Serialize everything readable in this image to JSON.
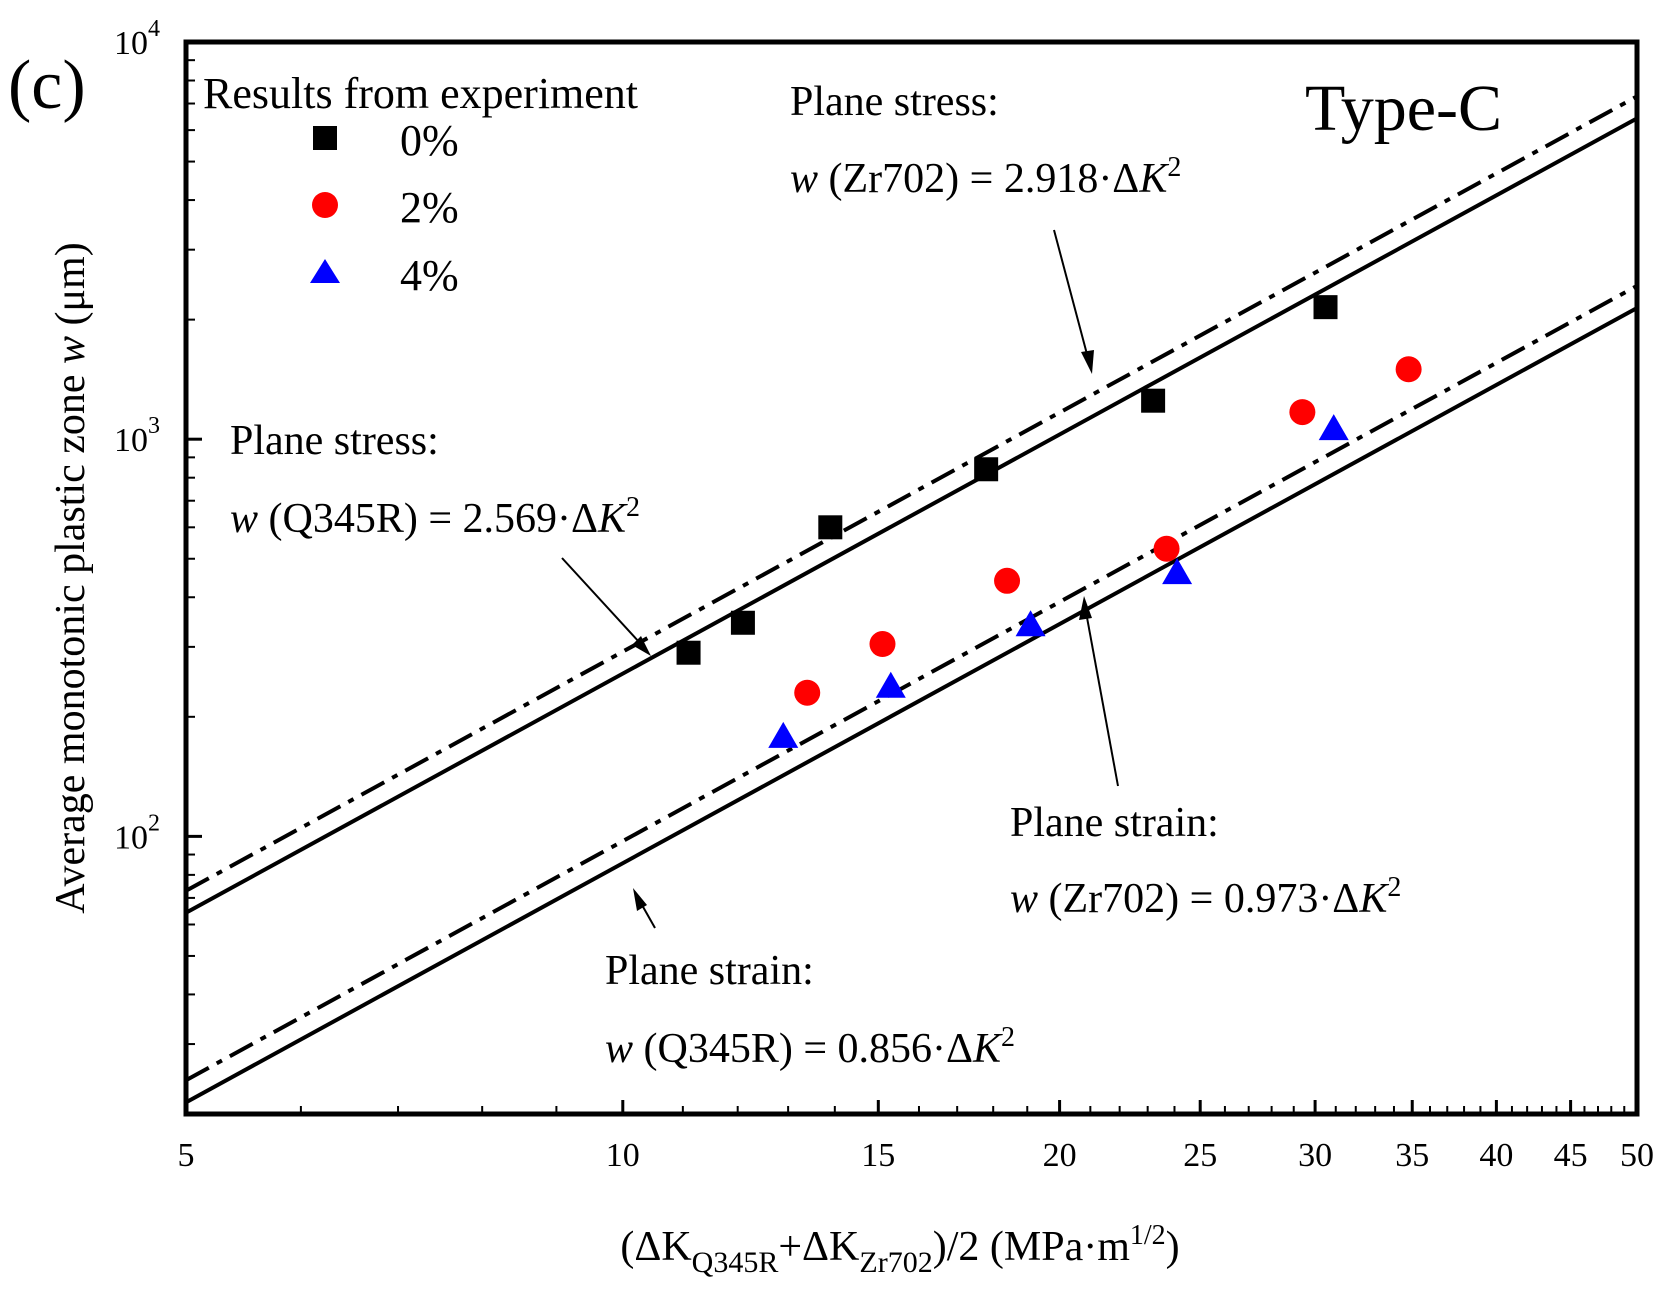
{
  "chart_data": {
    "type": "scatter",
    "panel_label": "(c)",
    "title": "Type-C",
    "xlabel_parts": [
      "(ΔK",
      "Q345R",
      "+ΔK",
      "Zr702",
      ")/2 (MPa·m",
      "1/2",
      ")"
    ],
    "ylabel_parts": [
      "Average monotonic plastic zone ",
      "w",
      " (μm)"
    ],
    "x_scale": "log",
    "y_scale": "log",
    "xlim": [
      5,
      50
    ],
    "ylim": [
      20,
      10000
    ],
    "x_ticks": [
      5,
      10,
      15,
      20,
      25,
      30,
      35,
      40,
      45,
      50
    ],
    "x_tick_labels": [
      "5",
      "10",
      "15",
      "20",
      "25",
      "30",
      "35",
      "40",
      "45",
      "50"
    ],
    "y_ticks": [
      {
        "base": "10",
        "exp": "2",
        "value": 100
      },
      {
        "base": "10",
        "exp": "3",
        "value": 1000
      },
      {
        "base": "10",
        "exp": "4",
        "value": 10000
      }
    ],
    "legend": {
      "title": "Results from experiment",
      "position": "top-left",
      "entries": [
        {
          "label": "0%",
          "marker": "square",
          "color": "#000000"
        },
        {
          "label": "2%",
          "marker": "circle",
          "color": "#ff0000"
        },
        {
          "label": "4%",
          "marker": "triangle",
          "color": "#0000ff"
        }
      ]
    },
    "series": [
      {
        "name": "0%",
        "marker": "square",
        "color": "#000000",
        "x": [
          11.1,
          12.1,
          13.9,
          17.8,
          23.2,
          30.5
        ],
        "y": [
          290,
          345,
          600,
          840,
          1250,
          2150
        ]
      },
      {
        "name": "2%",
        "marker": "circle",
        "color": "#ff0000",
        "x": [
          13.4,
          15.1,
          18.4,
          23.7,
          29.4,
          34.8
        ],
        "y": [
          230,
          305,
          440,
          530,
          1170,
          1500
        ]
      },
      {
        "name": "4%",
        "marker": "triangle",
        "color": "#0000ff",
        "x": [
          12.9,
          15.3,
          19.1,
          24.1,
          30.9
        ],
        "y": [
          178,
          238,
          340,
          460,
          1060
        ]
      }
    ],
    "fit_lines": [
      {
        "coef": 2.918,
        "style": "dashdot"
      },
      {
        "coef": 2.569,
        "style": "solid"
      },
      {
        "coef": 0.973,
        "style": "dashdot"
      },
      {
        "coef": 0.856,
        "style": "solid"
      }
    ],
    "annotations": [
      {
        "head": "Plane stress:",
        "eq_w": "w",
        "eq_mid": " (Zr702) = 2.918·Δ",
        "eq_k": "K",
        "eq_sup": "2"
      },
      {
        "head": "Plane stress:",
        "eq_w": "w",
        "eq_mid": " (Q345R) = 2.569·Δ",
        "eq_k": "K",
        "eq_sup": "2"
      },
      {
        "head": "Plane strain:",
        "eq_w": "w",
        "eq_mid": " (Zr702) = 0.973·Δ",
        "eq_k": "K",
        "eq_sup": "2"
      },
      {
        "head": "Plane strain:",
        "eq_w": "w",
        "eq_mid": " (Q345R) = 0.856·Δ",
        "eq_k": "K",
        "eq_sup": "2"
      }
    ]
  }
}
